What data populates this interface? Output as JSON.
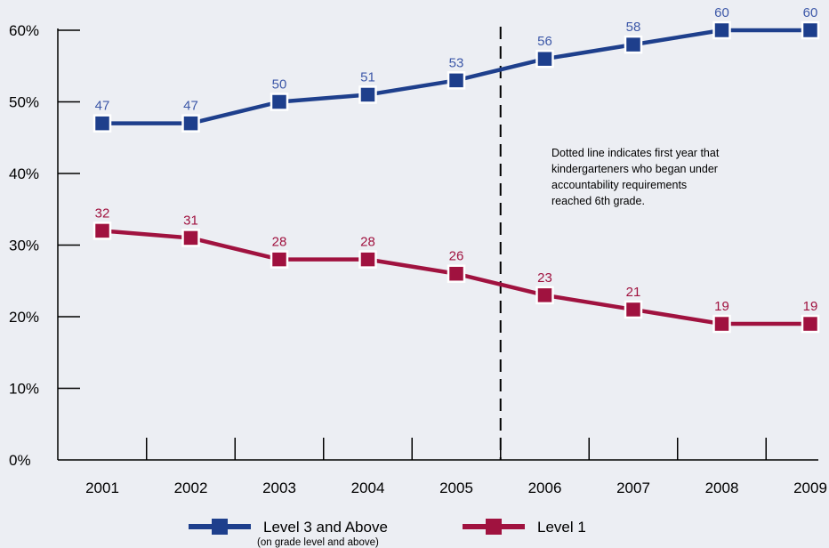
{
  "chart_data": {
    "type": "line",
    "categories": [
      "2001",
      "2002",
      "2003",
      "2004",
      "2005",
      "2006",
      "2007",
      "2008",
      "2009"
    ],
    "series": [
      {
        "name": "Level 3 and Above",
        "subtitle": "(on grade level and above)",
        "values": [
          47,
          47,
          50,
          51,
          53,
          56,
          58,
          60,
          60
        ],
        "color": "#1e3f8c",
        "label_color": "#3d58a8"
      },
      {
        "name": "Level 1",
        "values": [
          32,
          31,
          28,
          28,
          26,
          23,
          21,
          19,
          19
        ],
        "color": "#a0123f",
        "label_color": "#a0123f"
      }
    ],
    "yticks": [
      "0%",
      "10%",
      "20%",
      "30%",
      "40%",
      "50%",
      "60%"
    ],
    "ylim": [
      0,
      60
    ],
    "y_unit": "percent",
    "divider": {
      "between": [
        "2005",
        "2006"
      ],
      "style": "dashed"
    },
    "annotation": [
      "Dotted line indicates first year that",
      "kindergarteners who began under",
      "accountability requirements",
      "reached 6th grade."
    ],
    "legend_position": "bottom",
    "grid": false,
    "background": "#eceef3"
  }
}
